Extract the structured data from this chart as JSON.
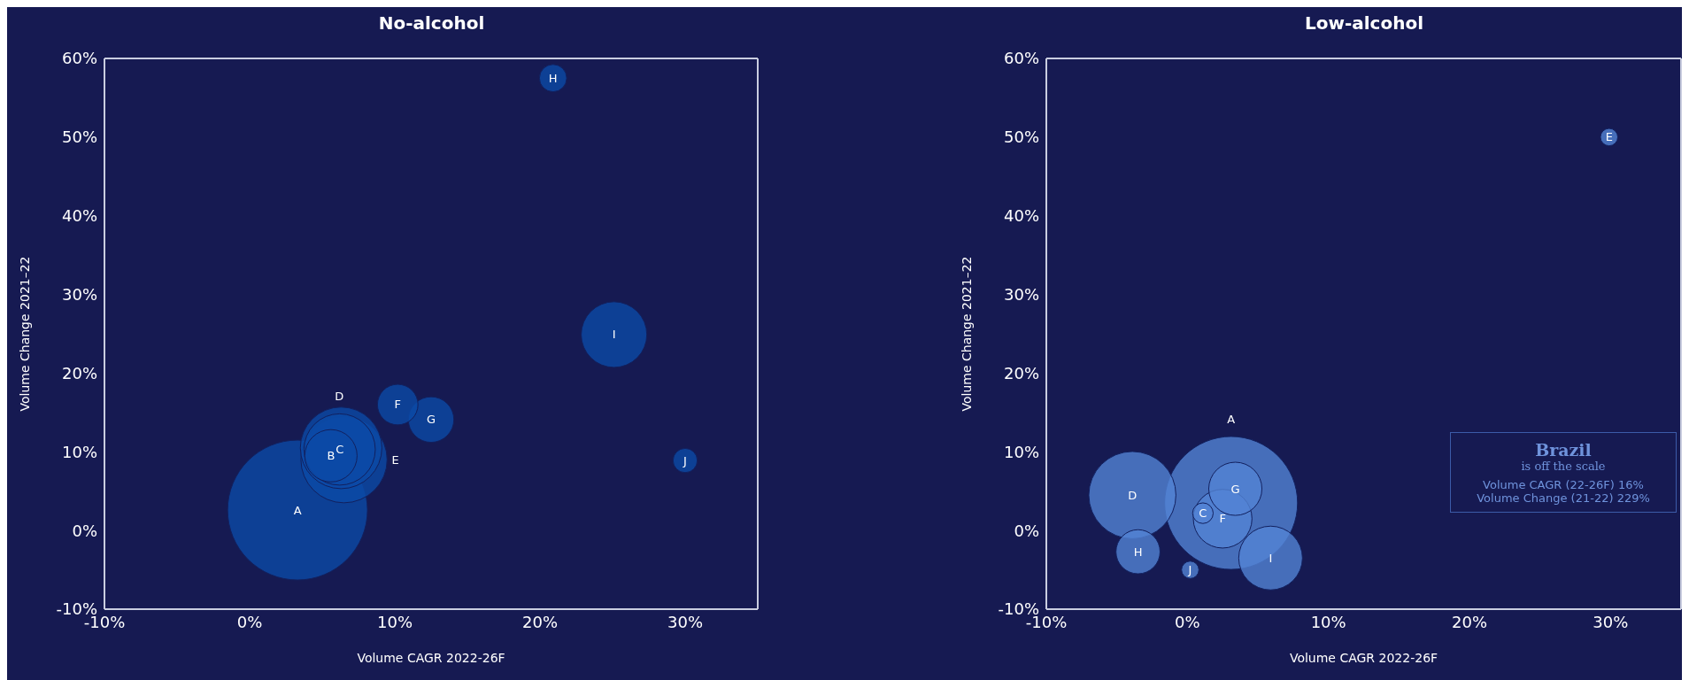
{
  "chart_data": [
    {
      "type": "bubble",
      "title": "No-alcohol",
      "xlabel": "Volume CAGR 2022-26F",
      "ylabel": "Volume Change 2021–22",
      "xlim": [
        -10,
        35
      ],
      "xticks": [
        {
          "value": -10,
          "label": "-10%"
        },
        {
          "value": 0,
          "label": "0%"
        },
        {
          "value": 10,
          "label": "10%"
        },
        {
          "value": 20,
          "label": "20%"
        },
        {
          "value": 30,
          "label": "30%"
        }
      ],
      "ylim": [
        -10,
        60
      ],
      "yticks": [
        {
          "value": -10,
          "label": "-10%"
        },
        {
          "value": 0,
          "label": "0%"
        },
        {
          "value": 10,
          "label": "10%"
        },
        {
          "value": 20,
          "label": "20%"
        },
        {
          "value": 30,
          "label": "30%"
        },
        {
          "value": 40,
          "label": "40%"
        },
        {
          "value": 50,
          "label": "50%"
        },
        {
          "value": 60,
          "label": "60%"
        }
      ],
      "series": [
        {
          "name": "A",
          "color": "#0b4aa6",
          "x": [
            3.3
          ],
          "values": [
            2.6
          ],
          "sizes": [
            1
          ]
        },
        {
          "name": "B",
          "color": "#0b4aa6",
          "x": [
            5.6
          ],
          "values": [
            9.5
          ],
          "sizes": [
            0.14
          ]
        },
        {
          "name": "C",
          "color": "#0b4aa6",
          "x": [
            6.2
          ],
          "values": [
            10.3
          ],
          "sizes": [
            0.26
          ]
        },
        {
          "name": "D",
          "color": "#0b4aa6",
          "x": [
            6.3
          ],
          "values": [
            10.5
          ],
          "sizes": [
            0.34
          ]
        },
        {
          "name": "E",
          "color": "#0b4aa6",
          "x": [
            6.5
          ],
          "values": [
            9
          ],
          "sizes": [
            0.38
          ]
        },
        {
          "name": "F",
          "color": "#0b4aa6",
          "x": [
            10.2
          ],
          "values": [
            16
          ],
          "sizes": [
            0.084
          ]
        },
        {
          "name": "G",
          "color": "#0b4aa6",
          "x": [
            12.5
          ],
          "values": [
            14.1
          ],
          "sizes": [
            0.106
          ]
        },
        {
          "name": "H",
          "color": "#0b4aa6",
          "x": [
            20.9
          ],
          "values": [
            57.5
          ],
          "sizes": [
            0.038
          ]
        },
        {
          "name": "I",
          "color": "#0b4aa6",
          "x": [
            25.1
          ],
          "values": [
            24.9
          ],
          "sizes": [
            0.22
          ]
        },
        {
          "name": "J",
          "color": "#0b4aa6",
          "x": [
            30
          ],
          "values": [
            8.9
          ],
          "sizes": [
            0.03
          ]
        }
      ]
    },
    {
      "type": "bubble",
      "title": "Low-alcohol",
      "xlabel": "Volume CAGR 2022-26F",
      "ylabel": "Volume Change 2021–22",
      "xlim": [
        -10,
        35
      ],
      "xticks": [
        {
          "value": -10,
          "label": "-10%"
        },
        {
          "value": 0,
          "label": "0%"
        },
        {
          "value": 10,
          "label": "10%"
        },
        {
          "value": 20,
          "label": "20%"
        },
        {
          "value": 30,
          "label": "30%"
        }
      ],
      "ylim": [
        -10,
        60
      ],
      "yticks": [
        {
          "value": -10,
          "label": "-10%"
        },
        {
          "value": 0,
          "label": "0%"
        },
        {
          "value": 10,
          "label": "10%"
        },
        {
          "value": 20,
          "label": "20%"
        },
        {
          "value": 30,
          "label": "30%"
        },
        {
          "value": 40,
          "label": "40%"
        },
        {
          "value": 50,
          "label": "50%"
        },
        {
          "value": 60,
          "label": "60%"
        }
      ],
      "annotations": [
        "Brazil",
        "is off the scale",
        "Volume CAGR (22-26F) 16%",
        "Volume Change (21-22) 229%"
      ],
      "series": [
        {
          "name": "A",
          "color": "#5283d4",
          "x": [
            3.1
          ],
          "values": [
            3.5
          ],
          "sizes": [
            1
          ]
        },
        {
          "name": "D",
          "color": "#5283d4",
          "x": [
            -3.9
          ],
          "values": [
            4.5
          ],
          "sizes": [
            0.43
          ]
        },
        {
          "name": "H",
          "color": "#5283d4",
          "x": [
            -3.5
          ],
          "values": [
            -2.7
          ],
          "sizes": [
            0.11
          ]
        },
        {
          "name": "J",
          "color": "#5283d4",
          "x": [
            0.2
          ],
          "values": [
            -5
          ],
          "sizes": [
            0.017
          ]
        },
        {
          "name": "I",
          "color": "#5283d4",
          "x": [
            5.9
          ],
          "values": [
            -3.5
          ],
          "sizes": [
            0.23
          ]
        },
        {
          "name": "F",
          "color": "#5283d4",
          "x": [
            2.5
          ],
          "values": [
            1.5
          ],
          "sizes": [
            0.195
          ]
        },
        {
          "name": "G",
          "color": "#5283d4",
          "x": [
            3.4
          ],
          "values": [
            5.3
          ],
          "sizes": [
            0.16
          ]
        },
        {
          "name": "C",
          "color": "#5283d4",
          "x": [
            1.1
          ],
          "values": [
            2.2
          ],
          "sizes": [
            0.024
          ]
        },
        {
          "name": "E",
          "color": "#5283d4",
          "x": [
            29.9
          ],
          "values": [
            50
          ],
          "sizes": [
            0.017
          ]
        }
      ]
    }
  ]
}
